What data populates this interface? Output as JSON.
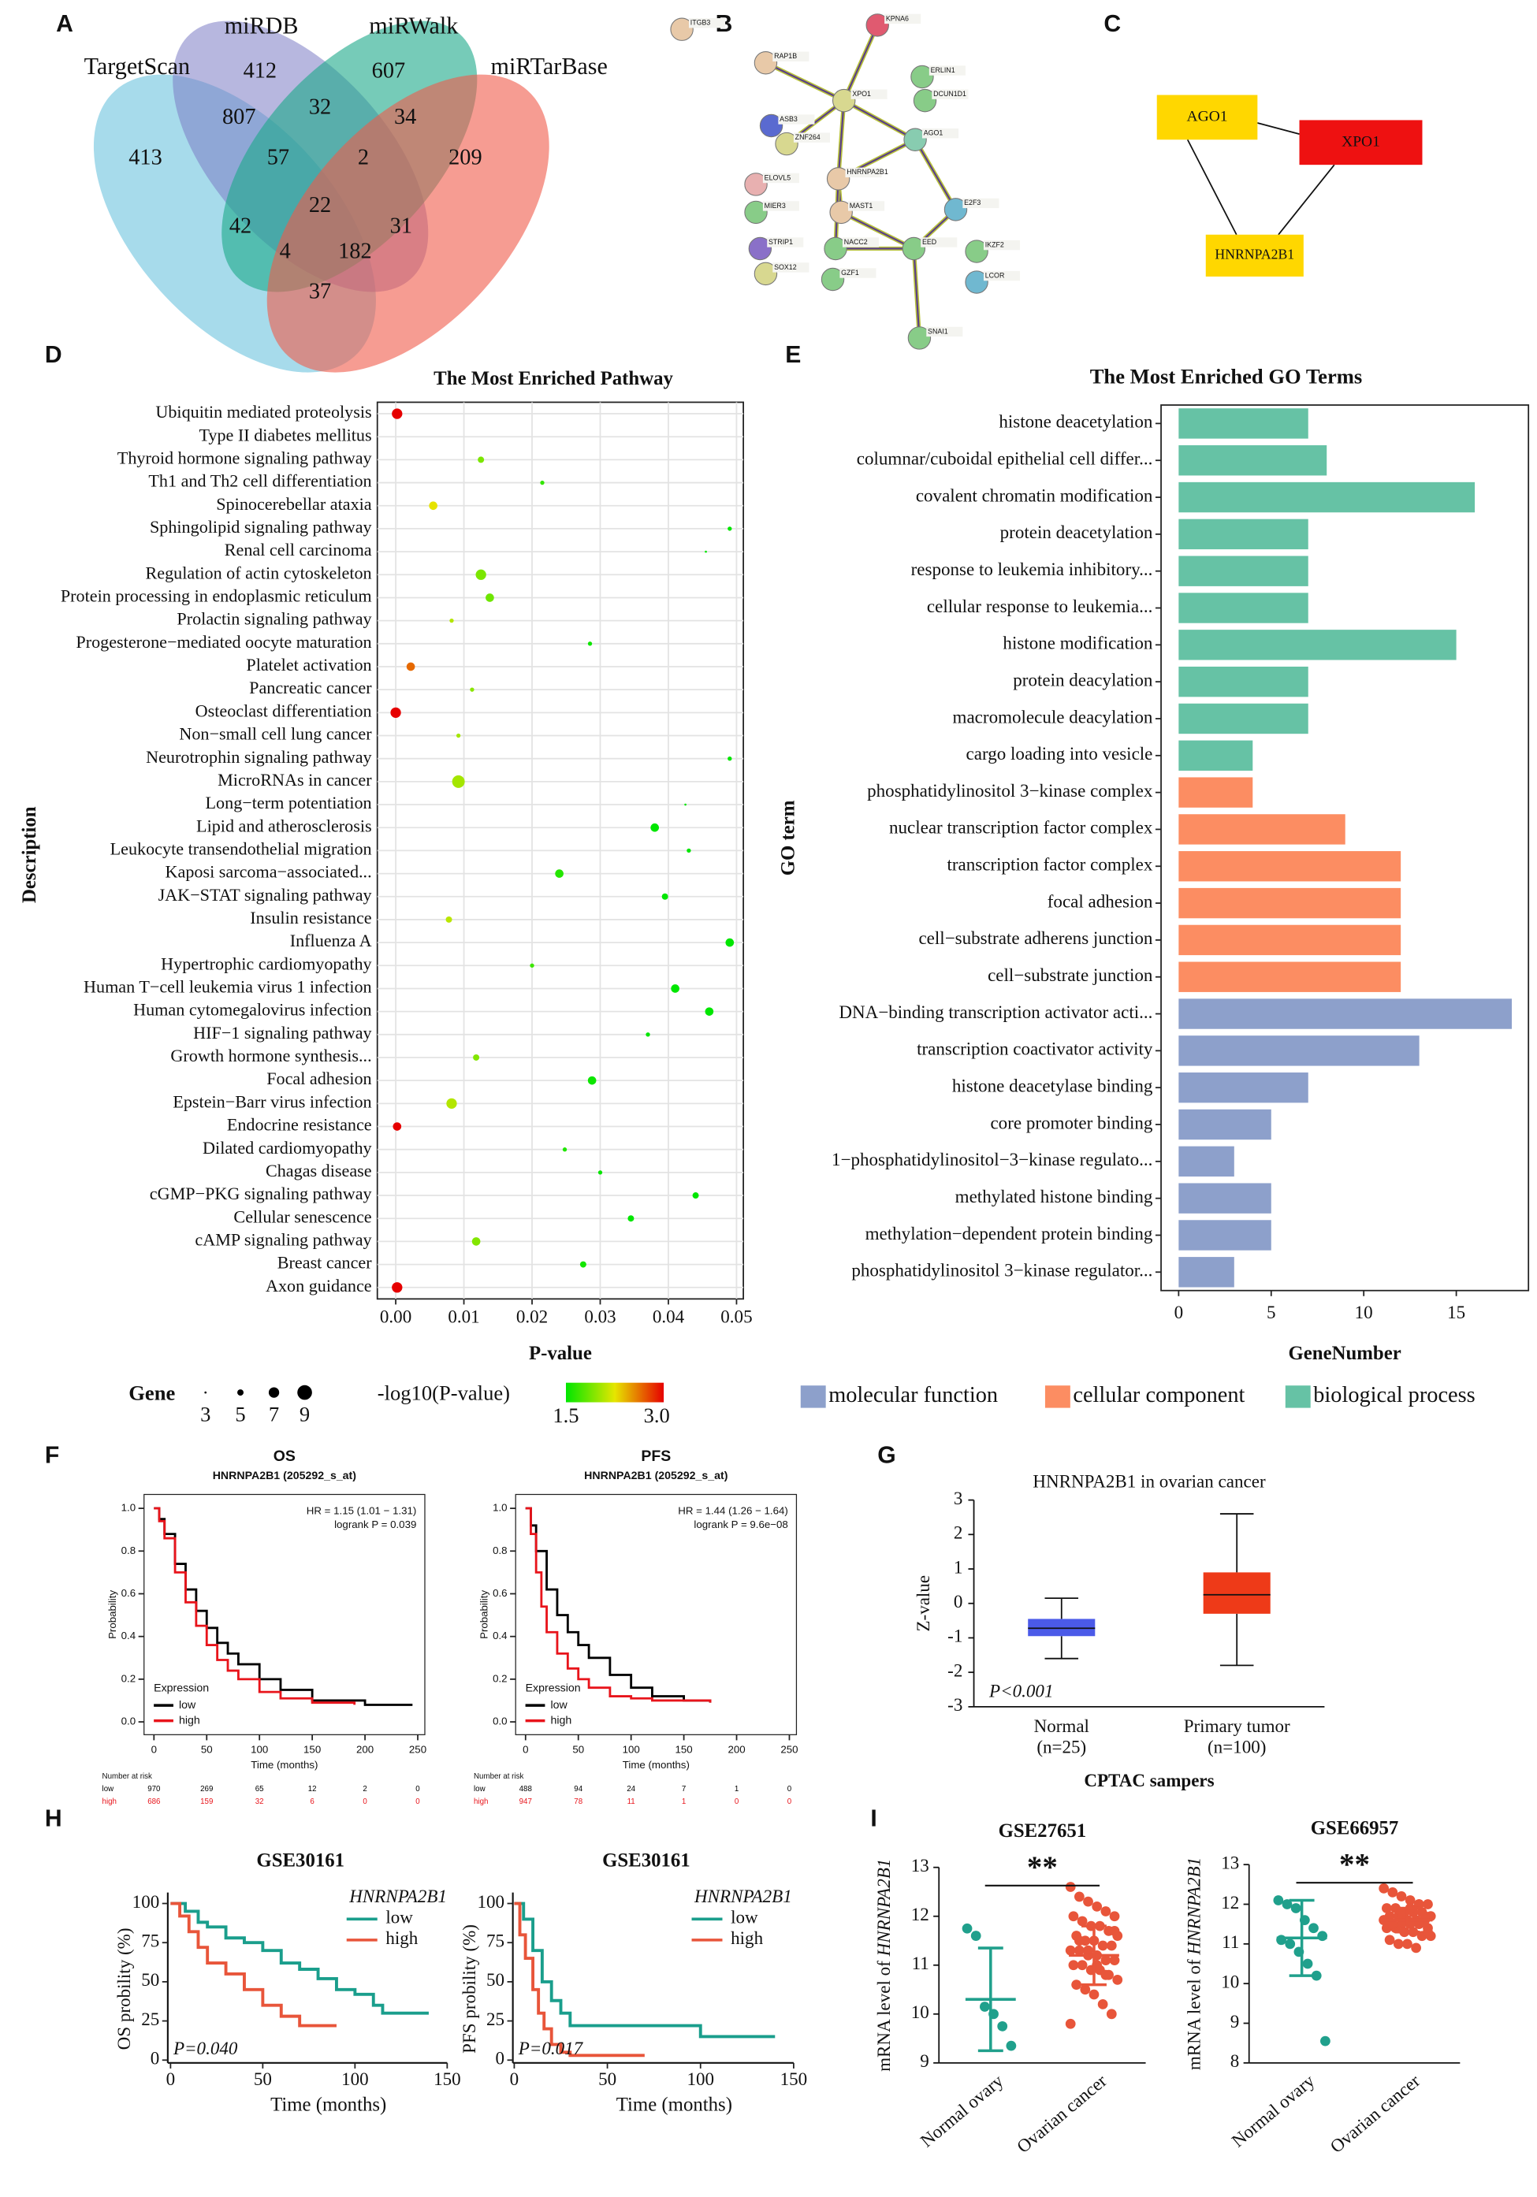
{
  "panel_labels": [
    "A",
    "B",
    "C",
    "D",
    "E",
    "F",
    "G",
    "H",
    "I"
  ],
  "venn": {
    "sets": [
      "TargetScan",
      "miRDB",
      "miRWalk",
      "miRTarBase"
    ],
    "regions": [
      412,
      607,
      413,
      807,
      32,
      34,
      209,
      57,
      2,
      22,
      42,
      31,
      182,
      4,
      37
    ]
  },
  "network_b": {
    "nodes": [
      "ITGB3",
      "RAP1B",
      "KPNA6",
      "ERLIN1",
      "DCUN1D1",
      "XPO1",
      "ASB3",
      "ZNF264",
      "AGO1",
      "HNRNPA2B1",
      "ELOVL5",
      "MIER3",
      "MAST1",
      "E2F3",
      "STRIP1",
      "NACC2",
      "EED",
      "IKZF2",
      "SOX12",
      "GZF1",
      "LCOR",
      "SNAI1"
    ]
  },
  "network_c": {
    "nodes": [
      "AGO1",
      "XPO1",
      "HNRNPA2B1"
    ]
  },
  "chart_data": [
    {
      "type": "dot",
      "title": "The Most Enriched Pathway",
      "xlabel": "P-value",
      "ylabel": "Description",
      "categories": [
        "Ubiquitin mediated proteolysis",
        "Type II diabetes mellitus",
        "Thyroid hormone signaling pathway",
        "Th1 and Th2 cell differentiation",
        "Spinocerebellar ataxia",
        "Sphingolipid signaling pathway",
        "Renal cell carcinoma",
        "Regulation of actin cytoskeleton",
        "Protein processing in endoplasmic reticulum",
        "Prolactin signaling pathway",
        "Progesterone−mediated oocyte maturation",
        "Platelet activation",
        "Pancreatic cancer",
        "Osteoclast differentiation",
        "Non−small cell lung cancer",
        "Neurotrophin signaling pathway",
        "MicroRNAs in cancer",
        "Long−term potentiation",
        "Lipid and atherosclerosis",
        "Leukocyte transendothelial migration",
        "Kaposi sarcoma−associated...",
        "JAK−STAT signaling pathway",
        "Insulin resistance",
        "Influenza A",
        "Hypertrophic cardiomyopathy",
        "Human T−cell leukemia virus 1 infection",
        "Human cytomegalovirus infection",
        "HIF−1 signaling pathway",
        "Growth hormone synthesis...",
        "Focal adhesion",
        "Epstein−Barr virus infection",
        "Endocrine resistance",
        "Dilated cardiomyopathy",
        "Chagas disease",
        "cGMP−PKG signaling pathway",
        "Cellular senescence",
        "cAMP signaling pathway",
        "Breast cancer",
        "Axon guidance"
      ],
      "values": [
        0.0002,
        null,
        0.0125,
        0.0215,
        0.0055,
        0.049,
        0.0455,
        0.0125,
        0.0138,
        0.0082,
        0.0285,
        0.0022,
        0.0112,
        0.0,
        0.0092,
        0.049,
        0.0092,
        0.0425,
        0.038,
        0.043,
        0.024,
        0.0395,
        0.0078,
        0.049,
        0.02,
        0.041,
        0.046,
        0.037,
        0.0118,
        0.0288,
        0.0082,
        0.0002,
        0.0248,
        0.03,
        0.044,
        0.0345,
        0.0118,
        0.0275,
        0.0002
      ],
      "sizes": [
        7,
        null,
        5,
        4,
        6,
        4,
        3,
        7,
        6,
        4,
        4,
        6,
        4,
        7,
        4,
        4,
        8,
        3,
        6,
        4,
        6,
        5,
        5,
        6,
        4,
        6,
        6,
        4,
        5,
        6,
        7,
        6,
        4,
        4,
        5,
        5,
        6,
        5,
        7
      ],
      "xlim": [
        -0.0027,
        0.051
      ],
      "xticks": [
        {
          "value": 0,
          "label": "0.00"
        },
        {
          "value": 0.01,
          "label": "0.01"
        },
        {
          "value": 0.02,
          "label": "0.02"
        },
        {
          "value": 0.03,
          "label": "0.03"
        },
        {
          "value": 0.04,
          "label": "0.04"
        },
        {
          "value": 0.05,
          "label": "0.05"
        }
      ],
      "grid": true,
      "size_legend": {
        "title": "Gene",
        "values": [
          3,
          5,
          7,
          9
        ]
      },
      "color_legend": {
        "title": "-log10(P-value)",
        "range": [
          1.5,
          {
            "value": 3,
            "label": "3.0"
          }
        ]
      }
    },
    {
      "type": "bar",
      "horizontal": true,
      "title": "The Most Enriched GO Terms",
      "xlabel": "GeneNumber",
      "ylabel": "GO term",
      "categories": [
        "histone deacetylation",
        "columnar/cuboidal epithelial cell differ...",
        "covalent chromatin modification",
        "protein deacetylation",
        "response to leukemia inhibitory...",
        "cellular response to leukemia...",
        "histone modification",
        "protein deacylation",
        "macromolecule deacylation",
        "cargo loading into vesicle",
        "phosphatidylinositol 3−kinase complex",
        "nuclear transcription factor complex",
        "transcription factor complex",
        "focal adhesion",
        "cell−substrate adherens junction",
        "cell−substrate junction",
        "DNA−binding transcription activator acti...",
        "transcription coactivator activity",
        "histone deacetylase binding",
        "core promoter binding",
        "1−phosphatidylinositol−3−kinase regulato...",
        "methylated histone binding",
        "methylation−dependent protein binding",
        "phosphatidylinositol 3−kinase regulator..."
      ],
      "series": [
        {
          "name": "molecular function",
          "color": "#8da0cb",
          "values": [
            null,
            null,
            null,
            null,
            null,
            null,
            null,
            null,
            null,
            null,
            null,
            null,
            null,
            null,
            null,
            null,
            18,
            13,
            7,
            5,
            3,
            5,
            5,
            3
          ]
        },
        {
          "name": "cellular component",
          "color": "#fc8d62",
          "values": [
            null,
            null,
            null,
            null,
            null,
            null,
            null,
            null,
            null,
            null,
            4,
            9,
            12,
            12,
            12,
            12,
            null,
            null,
            null,
            null,
            null,
            null,
            null,
            null
          ]
        },
        {
          "name": "biological process",
          "color": "#66c2a5",
          "values": [
            7,
            8,
            16,
            7,
            7,
            7,
            15,
            7,
            7,
            4,
            null,
            null,
            null,
            null,
            null,
            null,
            null,
            null,
            null,
            null,
            null,
            null,
            null,
            null
          ]
        }
      ],
      "xlim": [
        -0.95,
        18.9
      ],
      "xticks": [
        0,
        5,
        10,
        15
      ]
    },
    {
      "type": "line",
      "step": true,
      "title": "OS",
      "subtitle": "HNRNPA2B1 (205292_s_at)",
      "annotations": [
        "HR = 1.15 (1.01 − 1.31)",
        "logrank P = 0.039"
      ],
      "xlabel": "Time (months)",
      "ylabel": "Probability",
      "legend_title": "Expression",
      "legend": "lower left",
      "series": [
        {
          "name": "low",
          "color": "#000000",
          "x": [
            0,
            5,
            10,
            20,
            30,
            40,
            50,
            60,
            70,
            80,
            100,
            120,
            150,
            200,
            245
          ],
          "values": [
            1,
            0.95,
            0.88,
            0.74,
            0.62,
            0.52,
            0.44,
            0.37,
            0.32,
            0.27,
            0.2,
            0.15,
            0.1,
            0.08,
            0.08
          ]
        },
        {
          "name": "high",
          "color": "#e8141b",
          "x": [
            0,
            5,
            10,
            20,
            30,
            40,
            50,
            60,
            70,
            80,
            100,
            120,
            150,
            190
          ],
          "values": [
            1,
            0.94,
            0.86,
            0.7,
            0.56,
            0.45,
            0.36,
            0.29,
            0.24,
            0.2,
            0.14,
            0.11,
            0.09,
            0.08
          ]
        }
      ],
      "xlim": [
        -9.4,
        256.7
      ],
      "ylim": [
        -0.06,
        1.065
      ],
      "xticks": [
        0,
        50,
        100,
        150,
        200,
        250
      ],
      "yticks": [
        {
          "value": 0,
          "label": "0.0"
        },
        0.2,
        0.4,
        0.6,
        0.8,
        {
          "value": 1,
          "label": "1.0"
        }
      ],
      "risk_table": {
        "title": "Number at risk",
        "rows": [
          {
            "name": "low",
            "values": [
              970,
              269,
              65,
              12,
              2,
              0
            ]
          },
          {
            "name": "high",
            "values": [
              686,
              159,
              32,
              6,
              0,
              0
            ]
          }
        ]
      }
    },
    {
      "type": "line",
      "step": true,
      "title": "PFS",
      "subtitle": "HNRNPA2B1 (205292_s_at)",
      "annotations": [
        "HR = 1.44 (1.26 − 1.64)",
        "logrank P = 9.6e−08"
      ],
      "xlabel": "Time (months)",
      "ylabel": "Probability",
      "legend_title": "Expression",
      "legend": "lower left",
      "series": [
        {
          "name": "low",
          "color": "#000000",
          "x": [
            0,
            5,
            10,
            20,
            30,
            40,
            50,
            60,
            80,
            100,
            120,
            150,
            175
          ],
          "values": [
            1,
            0.92,
            0.8,
            0.62,
            0.5,
            0.42,
            0.36,
            0.3,
            0.22,
            0.16,
            0.12,
            0.1,
            0.09
          ]
        },
        {
          "name": "high",
          "color": "#e8141b",
          "x": [
            0,
            5,
            10,
            15,
            20,
            30,
            40,
            50,
            60,
            80,
            100,
            120,
            150,
            175
          ],
          "values": [
            1,
            0.88,
            0.7,
            0.54,
            0.42,
            0.32,
            0.25,
            0.2,
            0.16,
            0.12,
            0.11,
            0.1,
            0.1,
            0.09
          ]
        }
      ],
      "xlim": [
        -9.4,
        256.7
      ],
      "ylim": [
        -0.06,
        1.065
      ],
      "xticks": [
        0,
        50,
        100,
        150,
        200,
        250
      ],
      "yticks": [
        {
          "value": 0,
          "label": "0.0"
        },
        0.2,
        0.4,
        0.6,
        0.8,
        {
          "value": 1,
          "label": "1.0"
        }
      ],
      "risk_table": {
        "title": "Number at risk",
        "rows": [
          {
            "name": "low",
            "values": [
              488,
              94,
              24,
              7,
              1,
              0
            ]
          },
          {
            "name": "high",
            "values": [
              947,
              78,
              11,
              1,
              0,
              0
            ]
          }
        ]
      }
    },
    {
      "type": "box",
      "title": "HNRNPA2B1 in ovarian cancer",
      "ylabel": "Z-value",
      "xlabel": "CPTAC sampers",
      "categories": [
        "Normal",
        "Primary tumor"
      ],
      "category_notes": [
        "(n=25)",
        "(n=100)"
      ],
      "annotation": "P<0.001",
      "boxes": [
        {
          "color": "#4b5ae8",
          "min": -1.6,
          "q1": -0.95,
          "median": -0.72,
          "q3": -0.45,
          "max": 0.15
        },
        {
          "color": "#ee3a18",
          "min": -1.8,
          "q1": -0.3,
          "median": 0.25,
          "q3": 0.9,
          "max": 2.6
        }
      ],
      "ylim": [
        -3,
        3
      ],
      "yticks": [
        -3,
        -2,
        -1,
        0,
        1,
        2,
        3
      ]
    },
    {
      "type": "line",
      "step": true,
      "title": "GSE30161",
      "annotations": [
        "P=0.040"
      ],
      "xlabel": "Time (months)",
      "ylabel": "OS probility (%)",
      "legend_title": "HNRNPA2B1",
      "legend": "upper right",
      "series": [
        {
          "name": "low",
          "color": "#1a9e8c",
          "x": [
            0,
            8,
            15,
            20,
            30,
            40,
            50,
            60,
            70,
            80,
            90,
            100,
            110,
            115,
            140
          ],
          "values": [
            100,
            95,
            88,
            85,
            78,
            75,
            70,
            62,
            58,
            52,
            45,
            42,
            35,
            30,
            30
          ]
        },
        {
          "name": "high",
          "color": "#e8553a",
          "x": [
            0,
            5,
            10,
            15,
            20,
            30,
            40,
            50,
            60,
            70,
            90
          ],
          "values": [
            100,
            92,
            82,
            72,
            62,
            55,
            45,
            35,
            28,
            22,
            22
          ]
        }
      ],
      "xlim": [
        -1.5,
        150
      ],
      "ylim": [
        -1.8,
        107
      ],
      "xticks": [
        0,
        50,
        100,
        150
      ],
      "yticks": [
        0,
        25,
        50,
        75,
        100
      ]
    },
    {
      "type": "line",
      "step": true,
      "title": "GSE30161",
      "annotations": [
        "P=0.017"
      ],
      "xlabel": "Time (months)",
      "ylabel": "PFS probility (%)",
      "legend_title": "HNRNPA2B1",
      "legend": "upper right",
      "series": [
        {
          "name": "low",
          "color": "#1a9e8c",
          "x": [
            0,
            5,
            10,
            15,
            20,
            25,
            30,
            80,
            100,
            140
          ],
          "values": [
            100,
            90,
            70,
            50,
            38,
            30,
            22,
            22,
            15,
            15
          ]
        },
        {
          "name": "high",
          "color": "#e8553a",
          "x": [
            0,
            3,
            6,
            10,
            13,
            16,
            20,
            25,
            30,
            70
          ],
          "values": [
            100,
            80,
            65,
            45,
            30,
            20,
            10,
            5,
            3,
            3
          ]
        }
      ],
      "xlim": [
        -0.75,
        150
      ],
      "ylim": [
        -1.8,
        107
      ],
      "xticks": [
        0,
        50,
        100,
        150
      ],
      "yticks": [
        0,
        25,
        50,
        75,
        100
      ]
    },
    {
      "type": "scatter",
      "title": "GSE27651",
      "significance": "**",
      "ylabel_prefix": "mRNA level of",
      "ylabel_gene": "HNRNPA2B1",
      "categories": [
        "Normal ovary",
        "Ovarian cancer"
      ],
      "series": [
        {
          "color": "#20a08c",
          "values": [
            11.75,
            11.6,
            10.15,
            10.0,
            9.75,
            9.35
          ],
          "mean": 10.3,
          "sd": 1.05
        },
        {
          "color": "#e8553a",
          "values": [
            12.6,
            12.4,
            12.3,
            12.2,
            12.1,
            12.0,
            12.0,
            11.9,
            11.8,
            11.8,
            11.7,
            11.6,
            11.6,
            11.5,
            11.5,
            11.4,
            11.4,
            11.3,
            11.3,
            11.2,
            11.2,
            11.1,
            11.1,
            11.0,
            11.0,
            10.9,
            10.9,
            10.8,
            10.7,
            10.6,
            10.5,
            10.4,
            10.2,
            10.0,
            9.8,
            11.5,
            11.3,
            11.0,
            10.8,
            11.7
          ],
          "mean": 11.2,
          "sd": 0.6
        }
      ],
      "ylim": [
        9,
        13
      ],
      "yticks": [
        9,
        10,
        11,
        12,
        13
      ]
    },
    {
      "type": "scatter",
      "title": "GSE66957",
      "significance": "**",
      "ylabel_prefix": "mRNA level of",
      "ylabel_gene": "HNRNPA2B1",
      "categories": [
        "Normal ovary",
        "Ovarian cancer"
      ],
      "series": [
        {
          "color": "#20a08c",
          "values": [
            12.1,
            12.0,
            11.9,
            11.6,
            11.4,
            11.2,
            11.1,
            11.0,
            10.8,
            10.5,
            10.2,
            8.55
          ],
          "mean": 11.15,
          "sd": 0.95
        },
        {
          "color": "#e8553a",
          "values": [
            12.4,
            12.3,
            12.2,
            12.1,
            12.0,
            12.0,
            11.9,
            11.9,
            11.8,
            11.8,
            11.8,
            11.7,
            11.7,
            11.7,
            11.6,
            11.6,
            11.6,
            11.6,
            11.5,
            11.5,
            11.5,
            11.5,
            11.4,
            11.4,
            11.4,
            11.3,
            11.3,
            11.2,
            11.2,
            11.1,
            11.0,
            11.0,
            10.9,
            11.7,
            11.6,
            11.5,
            11.8,
            11.9,
            12.0,
            11.3
          ],
          "mean": 11.6,
          "sd": 0.3
        }
      ],
      "ylim": [
        8,
        13
      ],
      "yticks": [
        8,
        9,
        10,
        11,
        12,
        13
      ]
    }
  ]
}
